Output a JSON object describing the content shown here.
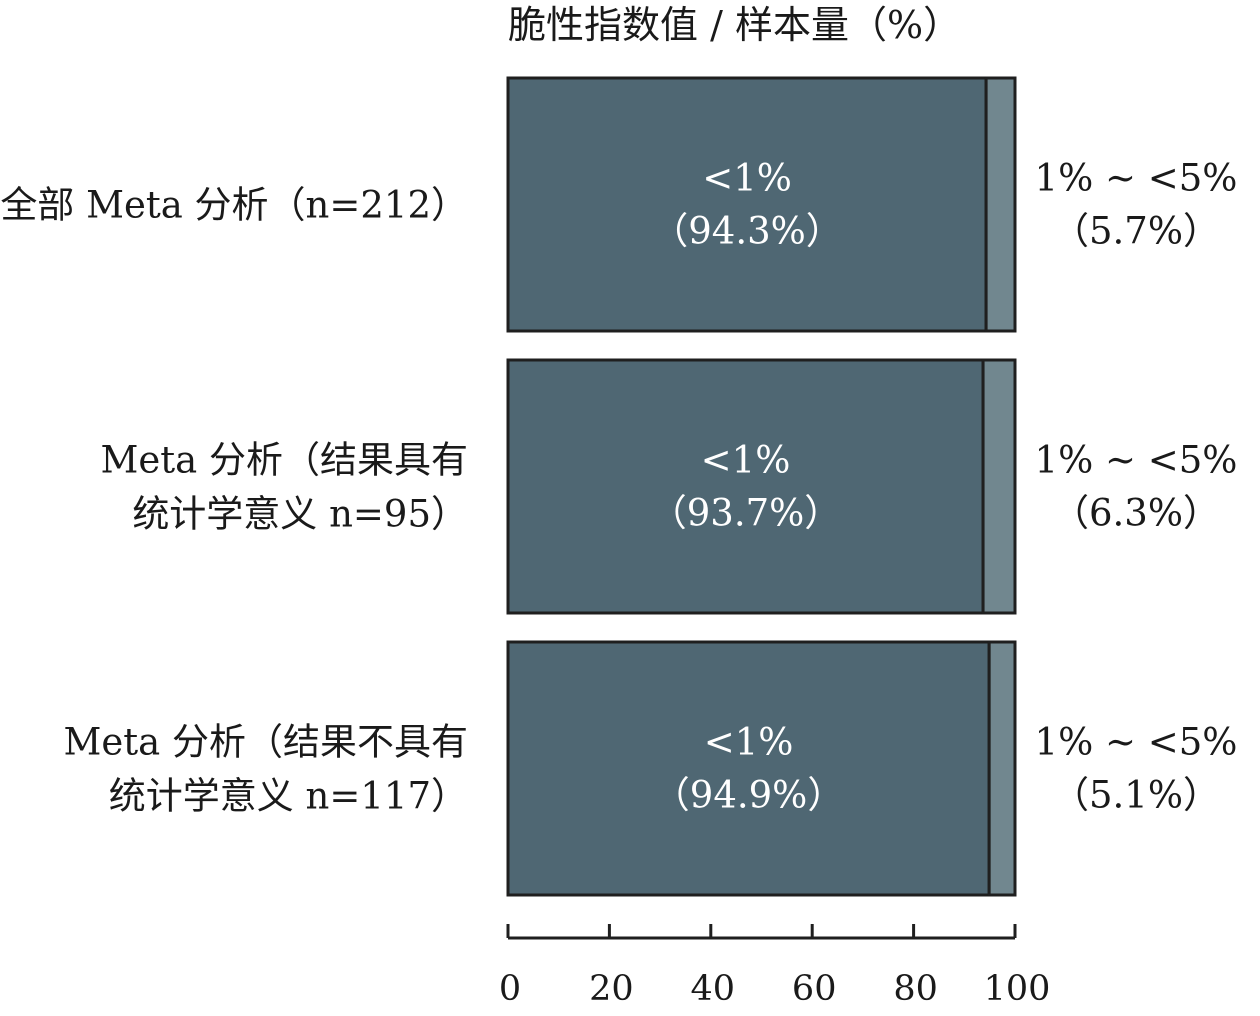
{
  "chart_data": {
    "type": "bar",
    "orientation": "horizontal",
    "stacked": true,
    "title": "脆性指数值 / 样本量（%）",
    "categories": [
      [
        "全部 Meta 分析（n=212）"
      ],
      [
        "Meta 分析（结果具有",
        "统计学意义 n=95）"
      ],
      [
        "Meta 分析（结果不具有",
        "统计学意义 n=117）"
      ]
    ],
    "series": [
      {
        "name": "<1%",
        "values": [
          94.3,
          93.7,
          94.9
        ],
        "labels": [
          "（94.3%）",
          "（93.7%）",
          "（94.9%）"
        ],
        "color": "#4f6773"
      },
      {
        "name": "1% ~ <5%",
        "values": [
          5.7,
          6.3,
          5.1
        ],
        "labels": [
          "（5.7%）",
          "（6.3%）",
          "（5.1%）"
        ],
        "color": "#71878f"
      }
    ],
    "xlim": [
      0,
      100
    ],
    "xticks": [
      0,
      20,
      40,
      60,
      80,
      100
    ],
    "grid": false,
    "legend": "none"
  }
}
